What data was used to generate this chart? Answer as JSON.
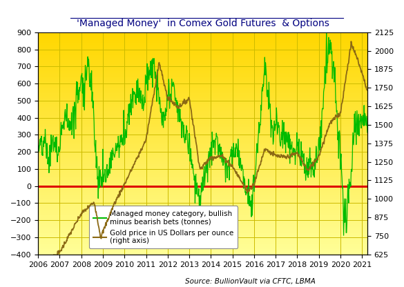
{
  "title": "'Managed Money'  in Comex Gold Futures  & Options",
  "source": "Source: BullionVault via CFTC, LBMA",
  "left_ylim": [
    -400,
    900
  ],
  "right_ylim": [
    625,
    2125
  ],
  "left_yticks": [
    -400,
    -300,
    -200,
    -100,
    0,
    100,
    200,
    300,
    400,
    500,
    600,
    700,
    800,
    900
  ],
  "right_yticks": [
    625,
    750,
    875,
    1000,
    1125,
    1250,
    1375,
    1500,
    1625,
    1750,
    1875,
    2000,
    2125
  ],
  "xlim_start": 2006.0,
  "xlim_end": 2021.25,
  "xtick_positions": [
    2006,
    2007,
    2008,
    2009,
    2010,
    2011,
    2012,
    2013,
    2014,
    2015,
    2016,
    2017,
    2018,
    2019,
    2020,
    2021
  ],
  "background_top_color": "#FFD700",
  "background_bottom_color": "#FFFF99",
  "grid_color": "#CCBB00",
  "zero_line_color": "#DD0000",
  "green_line_color": "#00BB00",
  "brown_line_color": "#8B6914",
  "legend_label_green": "Managed money category, bullish\nminus bearish bets (tonnes)",
  "legend_label_brown": "Gold price in US Dollars per ounce\n(right axis)"
}
